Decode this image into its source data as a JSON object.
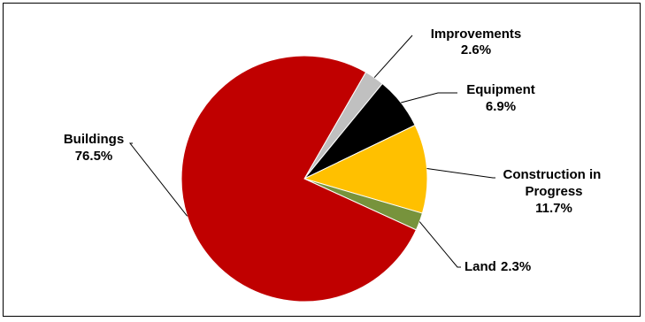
{
  "chart_data": {
    "type": "pie",
    "title": "",
    "start_angle_deg": 150,
    "direction": "clockwise",
    "legend": "none",
    "slices": [
      {
        "label": "Improvements",
        "value": 2.6,
        "value_label": "2.6%",
        "color": "#c0c0c0"
      },
      {
        "label": "Equipment",
        "value": 6.9,
        "value_label": "6.9%",
        "color": "#000000"
      },
      {
        "label": "Construction in Progress",
        "value": 11.7,
        "value_label": "11.7%",
        "color": "#ffc000"
      },
      {
        "label": "Land",
        "value": 2.3,
        "value_label": "2.3%",
        "color": "#77933c"
      },
      {
        "label": "Buildings",
        "value": 76.5,
        "value_label": "76.5%",
        "color": "#c00000"
      }
    ]
  }
}
